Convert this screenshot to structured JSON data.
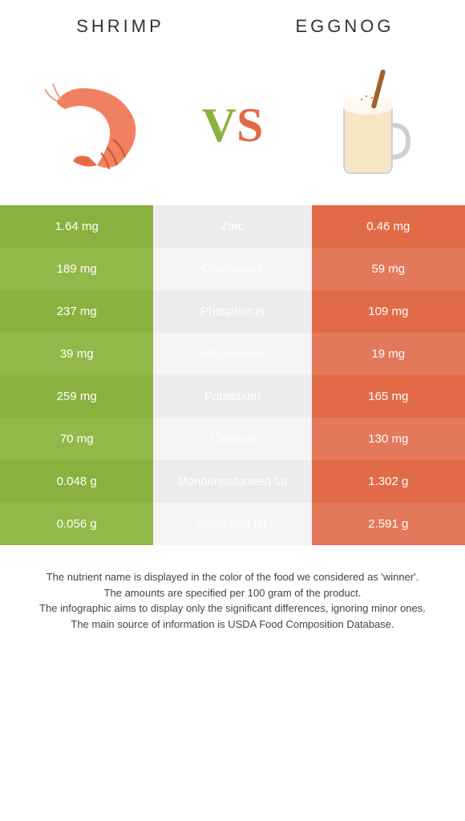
{
  "left_food": {
    "title": "Shrimp"
  },
  "right_food": {
    "title": "Eggnog"
  },
  "vs": {
    "v": "V",
    "s": "S"
  },
  "colors": {
    "left": [
      "#8ab13f",
      "#92b84a"
    ],
    "right": [
      "#e16b47",
      "#e4785a"
    ],
    "mid": [
      "#ececec",
      "#f5f5f5"
    ]
  },
  "rows": [
    {
      "left": "1.64 mg",
      "label": "Zinc",
      "right": "0.46 mg",
      "winner": "left"
    },
    {
      "left": "189 mg",
      "label": "Cholesterol",
      "right": "59 mg",
      "winner": "right"
    },
    {
      "left": "237 mg",
      "label": "Phosphorus",
      "right": "109 mg",
      "winner": "left"
    },
    {
      "left": "39 mg",
      "label": "Magnesium",
      "right": "19 mg",
      "winner": "left"
    },
    {
      "left": "259 mg",
      "label": "Potassium",
      "right": "165 mg",
      "winner": "left"
    },
    {
      "left": "70 mg",
      "label": "Calcium",
      "right": "130 mg",
      "winner": "right"
    },
    {
      "left": "0.048 g",
      "label": "Monounsaturated fat",
      "right": "1.302 g",
      "winner": "right"
    },
    {
      "left": "0.056 g",
      "label": "Saturated fat",
      "right": "2.591 g",
      "winner": "left"
    }
  ],
  "footer": {
    "l1": "The nutrient name is displayed in the color of the food we considered as 'winner'.",
    "l2": "The amounts are specified per 100 gram of the product.",
    "l3": "The infographic aims to display only the significant differences, ignoring minor ones.",
    "l4": "The main source of information is USDA Food Composition Database."
  }
}
